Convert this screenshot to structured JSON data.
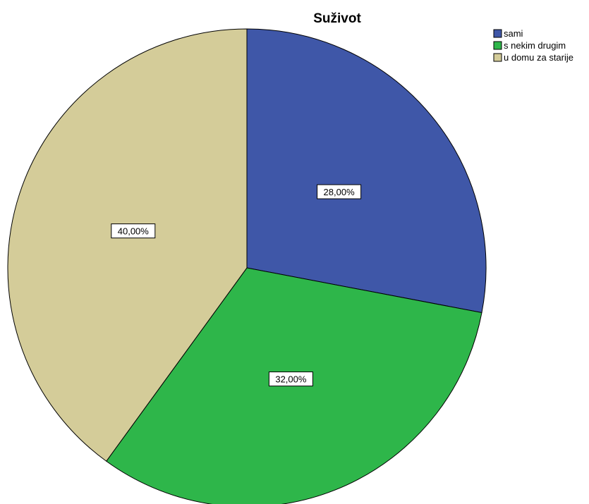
{
  "chart_data": {
    "type": "pie",
    "title": "Suživot",
    "legend_position": "top-right",
    "slices": [
      {
        "label": "sami",
        "value": 28,
        "value_label": "28,00%",
        "color": "#3F57A8"
      },
      {
        "label": "s nekim drugim",
        "value": 32,
        "value_label": "32,00%",
        "color": "#2EB64A"
      },
      {
        "label": "u domu za starije",
        "value": 40,
        "value_label": "40,00%",
        "color": "#D4CC99"
      }
    ]
  }
}
